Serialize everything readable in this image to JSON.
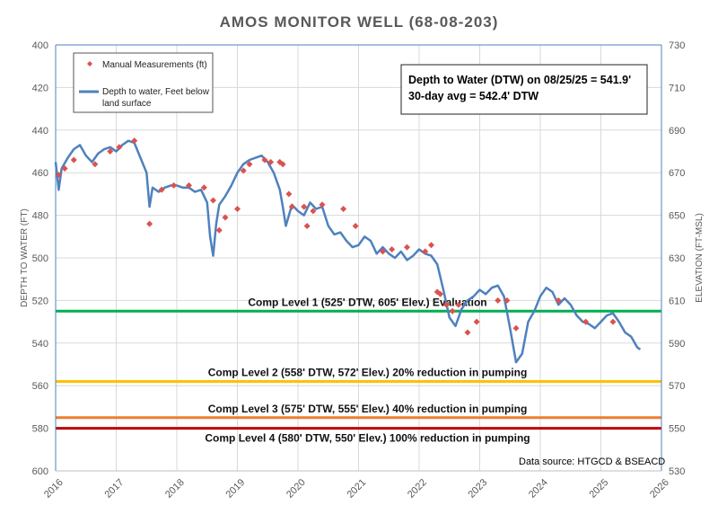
{
  "chart_data": {
    "type": "line",
    "title": "AMOS MONITOR WELL (68-08-203)",
    "ylabel_left": "DEPTH TO WATER (FT)",
    "ylabel_right": "ELEVATION (FT-MSL)",
    "x_ticks": [
      "2016",
      "2017",
      "2018",
      "2019",
      "2020",
      "2021",
      "2022",
      "2023",
      "2024",
      "2025",
      "2026"
    ],
    "xlim": [
      2016,
      2026
    ],
    "ylim_left": [
      400,
      600
    ],
    "y_inverted": true,
    "y_ticks_left": [
      "400",
      "420",
      "440",
      "460",
      "480",
      "500",
      "520",
      "540",
      "560",
      "580",
      "600"
    ],
    "ylim_right": [
      530,
      730
    ],
    "y_ticks_right": [
      "730",
      "710",
      "690",
      "670",
      "650",
      "630",
      "610",
      "590",
      "570",
      "550",
      "530"
    ],
    "grid": "horizontal-and-vertical",
    "legend": {
      "placement": "top-left",
      "entries": [
        {
          "label_line1": "Manual Measurements (ft)",
          "label_line2": "",
          "marker": "diamond",
          "color": "#d9534f"
        },
        {
          "label_line1": "Depth to water, Feet below",
          "label_line2": "land surface",
          "marker": "line",
          "color": "#4f81bd"
        }
      ]
    },
    "annotation": {
      "line1": "Depth to Water (DTW) on 08/25/25 = 541.9'",
      "line2": "30-day avg = 542.4' DTW"
    },
    "source": "Data source: HTGCD & BSEACD",
    "comp_levels": [
      {
        "depth": 525,
        "color": "#00b050",
        "label": "Comp Level 1 (525' DTW, 605' Elev.) Evaluation"
      },
      {
        "depth": 558,
        "color": "#ffc000",
        "label": "Comp Level 2 (558' DTW, 572' Elev.) 20% reduction in pumping"
      },
      {
        "depth": 575,
        "color": "#ed7d31",
        "label": "Comp Level 3 (575' DTW, 555' Elev.) 40% reduction in pumping"
      },
      {
        "depth": 580,
        "color": "#c00000",
        "label": "Comp Level 4 (580' DTW, 550' Elev.) 100% reduction in pumping"
      }
    ],
    "series": [
      {
        "name": "Depth to water, Feet below land surface",
        "color": "#4f81bd",
        "x": [
          2016.0,
          2016.05,
          2016.1,
          2016.2,
          2016.3,
          2016.4,
          2016.5,
          2016.6,
          2016.7,
          2016.8,
          2016.9,
          2017.0,
          2017.1,
          2017.2,
          2017.3,
          2017.4,
          2017.5,
          2017.55,
          2017.6,
          2017.7,
          2017.8,
          2017.9,
          2018.0,
          2018.1,
          2018.2,
          2018.3,
          2018.4,
          2018.5,
          2018.55,
          2018.6,
          2018.65,
          2018.7,
          2018.8,
          2018.9,
          2019.0,
          2019.1,
          2019.2,
          2019.3,
          2019.4,
          2019.5,
          2019.6,
          2019.7,
          2019.75,
          2019.8,
          2019.9,
          2020.0,
          2020.1,
          2020.2,
          2020.3,
          2020.4,
          2020.5,
          2020.6,
          2020.7,
          2020.8,
          2020.9,
          2021.0,
          2021.1,
          2021.2,
          2021.3,
          2021.4,
          2021.5,
          2021.6,
          2021.7,
          2021.8,
          2021.9,
          2022.0,
          2022.1,
          2022.2,
          2022.3,
          2022.4,
          2022.5,
          2022.6,
          2022.7,
          2022.8,
          2022.9,
          2023.0,
          2023.1,
          2023.2,
          2023.3,
          2023.4,
          2023.5,
          2023.6,
          2023.7,
          2023.8,
          2023.9,
          2024.0,
          2024.1,
          2024.2,
          2024.3,
          2024.4,
          2024.5,
          2024.6,
          2024.7,
          2024.8,
          2024.9,
          2025.0,
          2025.1,
          2025.2,
          2025.3,
          2025.4,
          2025.5,
          2025.6,
          2025.65
        ],
        "y": [
          455,
          468,
          458,
          453,
          449,
          447,
          452,
          455,
          451,
          449,
          448,
          450,
          447,
          445,
          446,
          453,
          460,
          476,
          467,
          469,
          467,
          466,
          466,
          467,
          467,
          469,
          468,
          474,
          490,
          499,
          484,
          475,
          471,
          466,
          460,
          456,
          454,
          453,
          452,
          455,
          460,
          468,
          476,
          485,
          475,
          478,
          480,
          474,
          477,
          476,
          485,
          489,
          488,
          492,
          495,
          494,
          490,
          492,
          498,
          495,
          498,
          500,
          497,
          501,
          499,
          496,
          498,
          499,
          503,
          515,
          528,
          532,
          524,
          520,
          518,
          515,
          517,
          514,
          513,
          518,
          533,
          549,
          545,
          530,
          525,
          518,
          514,
          516,
          522,
          519,
          522,
          527,
          530,
          531,
          533,
          530,
          527,
          526,
          530,
          535,
          537,
          542,
          543
        ]
      },
      {
        "name": "Manual Measurements (ft)",
        "color": "#d9534f",
        "x": [
          2016.05,
          2016.15,
          2016.3,
          2016.65,
          2016.9,
          2017.05,
          2017.3,
          2017.55,
          2017.75,
          2017.95,
          2018.2,
          2018.45,
          2018.6,
          2018.7,
          2018.8,
          2019.0,
          2019.1,
          2019.2,
          2019.45,
          2019.55,
          2019.7,
          2019.75,
          2019.85,
          2019.9,
          2020.1,
          2020.15,
          2020.25,
          2020.4,
          2020.75,
          2020.95,
          2021.4,
          2021.55,
          2021.8,
          2022.1,
          2022.2,
          2022.3,
          2022.35,
          2022.45,
          2022.55,
          2022.65,
          2022.8,
          2022.95,
          2023.3,
          2023.45,
          2023.6,
          2024.3,
          2024.75,
          2025.2
        ],
        "y": [
          461,
          458,
          454,
          456,
          450,
          448,
          445,
          484,
          468,
          466,
          466,
          467,
          473,
          487,
          481,
          477,
          459,
          456,
          454,
          455,
          455,
          456,
          470,
          476,
          476,
          485,
          478,
          475,
          477,
          485,
          497,
          496,
          495,
          497,
          494,
          516,
          517,
          522,
          525,
          522,
          535,
          530,
          520,
          520,
          533,
          520,
          530,
          530
        ]
      }
    ]
  }
}
